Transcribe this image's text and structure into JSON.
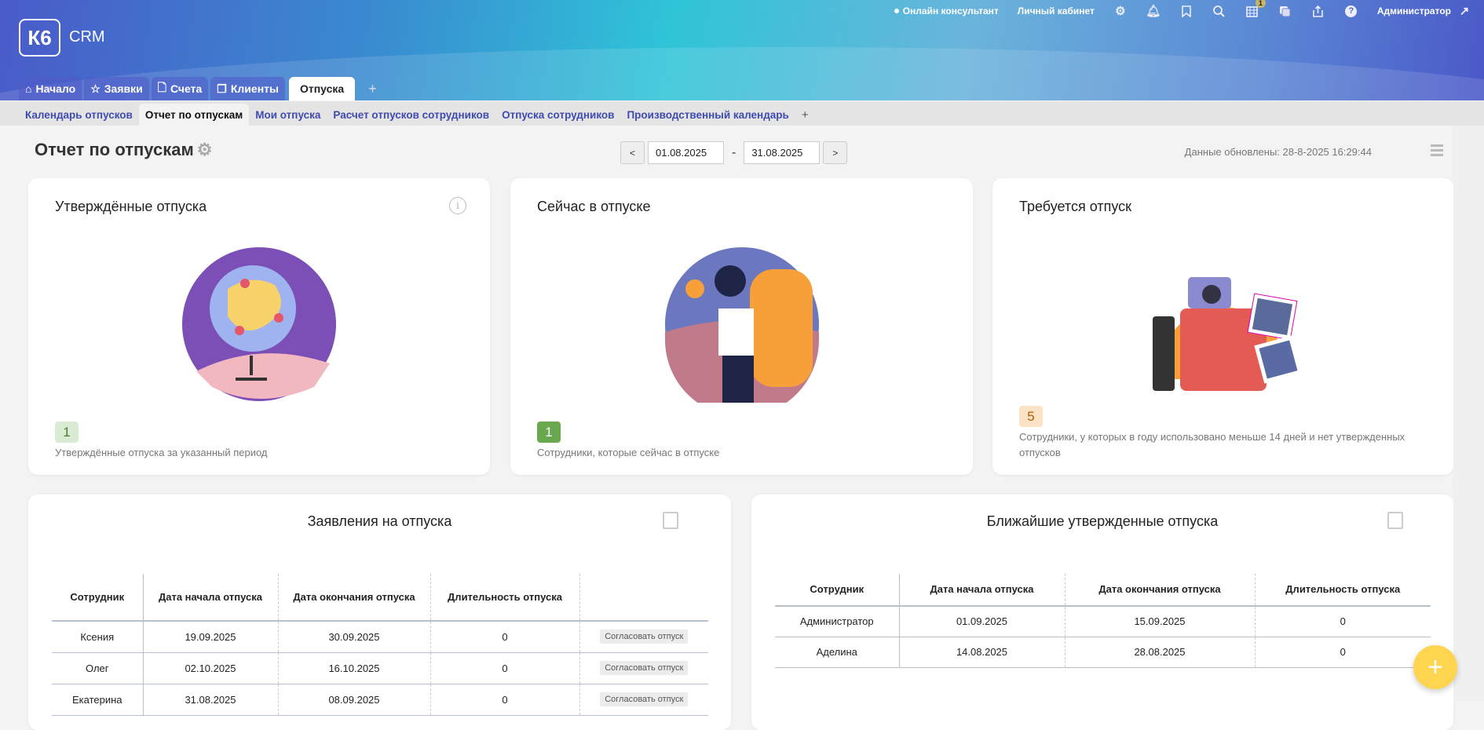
{
  "header": {
    "logo": "К6",
    "app": "CRM",
    "links": {
      "consultant": "Онлайн консультант",
      "cabinet": "Личный кабинет",
      "user": "Администратор"
    },
    "calendar_badge": "1",
    "icons": [
      "gear-icon",
      "bell-icon",
      "bookmark-icon",
      "search-icon",
      "calendar-icon",
      "chat-icon",
      "share-icon",
      "help-icon",
      "logout-icon"
    ]
  },
  "tabs": [
    {
      "label": "Начало",
      "icon": "home-icon"
    },
    {
      "label": "Заявки",
      "icon": "star-icon"
    },
    {
      "label": "Счета",
      "icon": "document-icon"
    },
    {
      "label": "Клиенты",
      "icon": "copy-icon"
    },
    {
      "label": "Отпуска",
      "active": true
    }
  ],
  "subtabs": [
    "Календарь отпусков",
    "Отчет по отпускам",
    "Мои отпуска",
    "Расчет отпусков сотрудников",
    "Отпуска сотрудников",
    "Производственный календарь"
  ],
  "page": {
    "title": "Отчет по отпускам",
    "date_from": "01.08.2025",
    "date_to": "31.08.2025",
    "prev": "<",
    "next": ">",
    "sep": "-",
    "updated": "Данные обновлены: 28-8-2025 16:29:44"
  },
  "cards": [
    {
      "title": "Утверждённые отпуска",
      "count": "1",
      "desc": "Утверждённые отпуска за указанный период",
      "badge_bg": "#d9ecd3",
      "badge_fg": "#4a7a3a"
    },
    {
      "title": "Сейчас в отпуске",
      "count": "1",
      "desc": "Сотрудники, которые сейчас в отпуске",
      "badge_bg": "#6aa84f",
      "badge_fg": "#ffffff"
    },
    {
      "title": "Требуется отпуск",
      "count": "5",
      "desc": "Сотрудники, у которых в году использовано меньше 14 дней и нет утвержденных отпусков",
      "badge_bg": "#fde3c6",
      "badge_fg": "#b25d00"
    }
  ],
  "requests": {
    "title": "Заявления на отпуска",
    "headers": [
      "Сотрудник",
      "Дата начала отпуска",
      "Дата окончания отпуска",
      "Длительность отпуска",
      ""
    ],
    "rows": [
      [
        "Ксения",
        "19.09.2025",
        "30.09.2025",
        "0"
      ],
      [
        "Олег",
        "02.10.2025",
        "16.10.2025",
        "0"
      ],
      [
        "Екатерина",
        "31.08.2025",
        "08.09.2025",
        "0"
      ]
    ],
    "action": "Согласовать отпуск"
  },
  "upcoming": {
    "title": "Ближайшие утвержденные отпуска",
    "headers": [
      "Сотрудник",
      "Дата начала отпуска",
      "Дата окончания отпуска",
      "Длительность отпуска"
    ],
    "rows": [
      [
        "Администратор",
        "01.09.2025",
        "15.09.2025",
        "0"
      ],
      [
        "Аделина",
        "14.08.2025",
        "28.08.2025",
        "0"
      ]
    ]
  },
  "fab": "+"
}
